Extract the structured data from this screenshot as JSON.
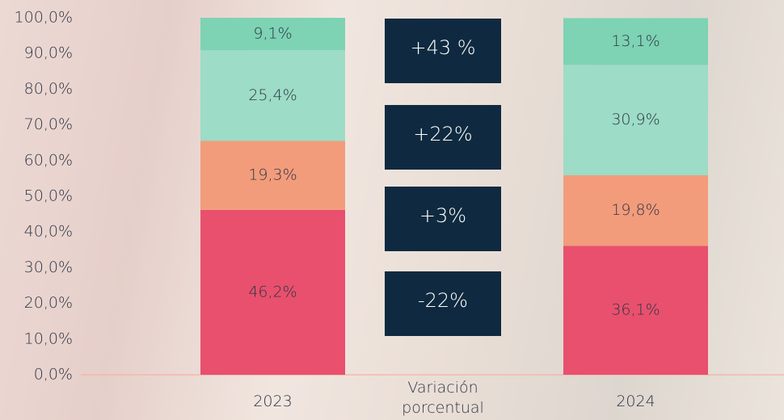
{
  "chart_data": {
    "type": "stacked-bar",
    "categories": [
      "2023",
      "Variación porcentual",
      "2024"
    ],
    "series": [
      {
        "color": "#e8506e",
        "values": [
          46.2,
          null,
          36.1
        ],
        "value_labels": [
          "46,2%",
          null,
          "36,1%"
        ]
      },
      {
        "color": "#f29c7b",
        "values": [
          19.3,
          null,
          19.8
        ],
        "value_labels": [
          "19,3%",
          null,
          "19,8%"
        ]
      },
      {
        "color": "#9ddcc6",
        "values": [
          25.4,
          null,
          30.9
        ],
        "value_labels": [
          "25,4%",
          null,
          "30,9%"
        ]
      },
      {
        "color": "#7dd3b4",
        "values": [
          9.1,
          null,
          13.1
        ],
        "value_labels": [
          "9,1%",
          null,
          "13,1%"
        ]
      }
    ],
    "annotations": [
      "+43 %",
      "+22%",
      "+3%",
      "-22%"
    ],
    "ylim": [
      0,
      100
    ],
    "yticks": [
      {
        "value": 0,
        "label": "0,0%"
      },
      {
        "value": 10,
        "label": "10,0%"
      },
      {
        "value": 20,
        "label": "20,0%"
      },
      {
        "value": 30,
        "label": "30,0%"
      },
      {
        "value": 40,
        "label": "40,0%"
      },
      {
        "value": 50,
        "label": "50,0%"
      },
      {
        "value": 60,
        "label": "60,0%"
      },
      {
        "value": 70,
        "label": "70,0%"
      },
      {
        "value": 80,
        "label": "80,0%"
      },
      {
        "value": 90,
        "label": "90,0%"
      },
      {
        "value": 100,
        "label": "100,0%"
      }
    ],
    "grid": false
  }
}
